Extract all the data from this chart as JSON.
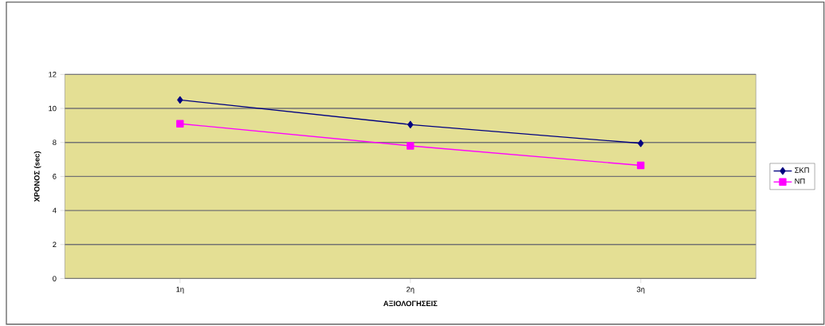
{
  "chart_data": {
    "type": "line",
    "xlabel": "ΑΞΙΟΛΟΓΗΣΕΙΣ",
    "ylabel": "ΧΡΟΝΟΣ (sec)",
    "categories": [
      "1η",
      "2η",
      "3η"
    ],
    "series": [
      {
        "name": "ΣΚΠ",
        "color": "#000080",
        "marker": "diamond",
        "values": [
          10.5,
          9.05,
          7.95
        ]
      },
      {
        "name": "ΝΠ",
        "color": "#ff00ff",
        "marker": "square",
        "values": [
          9.1,
          7.8,
          6.65
        ]
      }
    ],
    "ylim": [
      0,
      12
    ],
    "yticks": [
      0,
      2,
      4,
      6,
      8,
      10,
      12
    ],
    "grid": "y",
    "legend": "right"
  }
}
